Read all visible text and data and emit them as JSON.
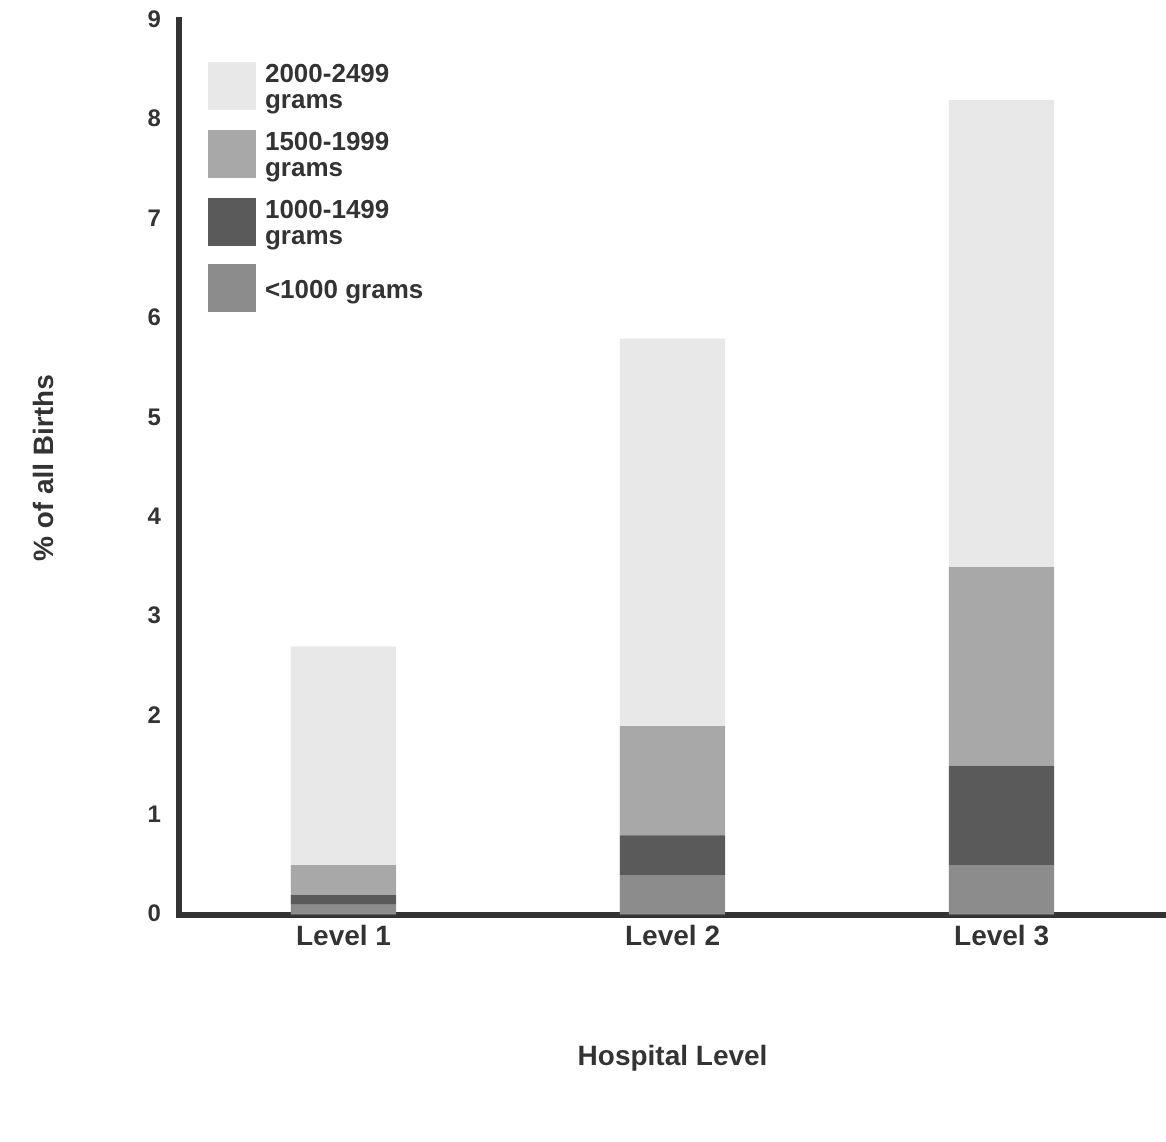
{
  "chart_data": {
    "type": "bar",
    "stacked": true,
    "xlabel": "Hospital Level",
    "ylabel": "% of all Births",
    "categories": [
      "Level 1",
      "Level 2",
      "Level 3"
    ],
    "series": [
      {
        "name": "<1000 grams",
        "color": "#8c8c8c",
        "values": [
          0.1,
          0.4,
          0.5
        ]
      },
      {
        "name": "1000-1499 grams",
        "color": "#5a5a5a",
        "values": [
          0.1,
          0.4,
          1.0
        ]
      },
      {
        "name": "1500-1999 grams",
        "color": "#a8a8a8",
        "values": [
          0.3,
          1.1,
          2.0
        ]
      },
      {
        "name": "2000-2499 grams",
        "color": "#e8e8e8",
        "values": [
          2.2,
          3.9,
          4.7
        ]
      }
    ],
    "ylim": [
      0,
      9
    ],
    "yticks": [
      0,
      1,
      2,
      3,
      4,
      5,
      6,
      7,
      8,
      9
    ],
    "grid": false,
    "legend": "top left"
  }
}
